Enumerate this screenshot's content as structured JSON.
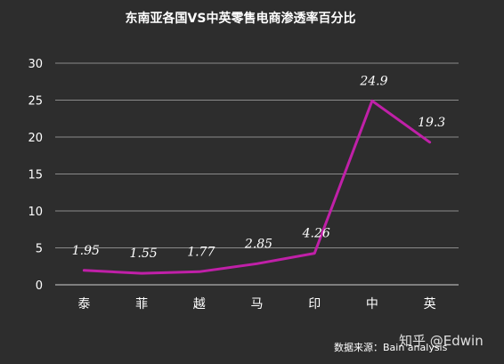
{
  "chart_data": {
    "type": "line",
    "title": "东南亚各国VS中英零售电商渗透率百分比",
    "categories": [
      "泰",
      "菲",
      "越",
      "马",
      "印",
      "中",
      "英"
    ],
    "series": [
      {
        "values": [
          1.95,
          1.55,
          1.77,
          2.85,
          4.26,
          24.9,
          19.3
        ],
        "data_labels": [
          "1.95",
          "1.55",
          "1.77",
          "2.85",
          "4.26",
          "24.9",
          "19.3"
        ]
      }
    ],
    "ylim": [
      0,
      30
    ],
    "yticks": [
      "0",
      "5",
      "10",
      "15",
      "20",
      "25",
      "30"
    ],
    "grid": true,
    "legend": "none"
  },
  "source": "数据来源：Bain analysis",
  "watermark": "知乎 @Edwin",
  "colors": {
    "background": "#2d2d2d",
    "line": "#c020a8",
    "grid": "#8a8a8a",
    "axis": "#cfcfcf",
    "text": "#ffffff"
  }
}
